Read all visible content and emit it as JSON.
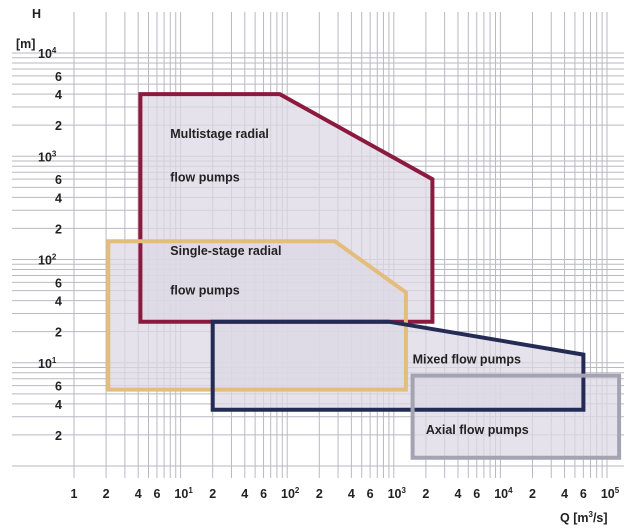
{
  "chart_data": {
    "type": "area",
    "title": "",
    "xlabel": {
      "text": "Q",
      "unit_base": "m",
      "unit_sup": "3",
      "unit_tail": "/s"
    },
    "ylabel": {
      "text": "H",
      "unit": "m"
    },
    "x_scale": "log",
    "y_scale": "log",
    "xlim": [
      1,
      100000
    ],
    "ylim": [
      1,
      10000
    ],
    "grid": true,
    "x_tick_labels": [
      {
        "value": 1,
        "base": "1",
        "sup": ""
      },
      {
        "value": 2,
        "base": "2",
        "sup": ""
      },
      {
        "value": 4,
        "base": "4",
        "sup": ""
      },
      {
        "value": 6,
        "base": "6",
        "sup": ""
      },
      {
        "value": 10,
        "base": "10",
        "sup": "1"
      },
      {
        "value": 20,
        "base": "2",
        "sup": ""
      },
      {
        "value": 40,
        "base": "4",
        "sup": ""
      },
      {
        "value": 60,
        "base": "6",
        "sup": ""
      },
      {
        "value": 100,
        "base": "10",
        "sup": "2"
      },
      {
        "value": 200,
        "base": "2",
        "sup": ""
      },
      {
        "value": 400,
        "base": "4",
        "sup": ""
      },
      {
        "value": 600,
        "base": "6",
        "sup": ""
      },
      {
        "value": 1000,
        "base": "10",
        "sup": "3"
      },
      {
        "value": 2000,
        "base": "2",
        "sup": ""
      },
      {
        "value": 4000,
        "base": "4",
        "sup": ""
      },
      {
        "value": 6000,
        "base": "6",
        "sup": ""
      },
      {
        "value": 10000,
        "base": "10",
        "sup": "4"
      },
      {
        "value": 20000,
        "base": "2",
        "sup": ""
      },
      {
        "value": 40000,
        "base": "4",
        "sup": ""
      },
      {
        "value": 60000,
        "base": "6",
        "sup": ""
      },
      {
        "value": 100000,
        "base": "10",
        "sup": "5"
      }
    ],
    "y_tick_labels": [
      {
        "value": 2,
        "base": "2",
        "sup": ""
      },
      {
        "value": 4,
        "base": "4",
        "sup": ""
      },
      {
        "value": 6,
        "base": "6",
        "sup": ""
      },
      {
        "value": 10,
        "base": "10",
        "sup": "1"
      },
      {
        "value": 20,
        "base": "2",
        "sup": ""
      },
      {
        "value": 40,
        "base": "4",
        "sup": ""
      },
      {
        "value": 60,
        "base": "6",
        "sup": ""
      },
      {
        "value": 100,
        "base": "10",
        "sup": "2"
      },
      {
        "value": 200,
        "base": "2",
        "sup": ""
      },
      {
        "value": 400,
        "base": "4",
        "sup": ""
      },
      {
        "value": 600,
        "base": "6",
        "sup": ""
      },
      {
        "value": 1000,
        "base": "10",
        "sup": "3"
      },
      {
        "value": 2000,
        "base": "2",
        "sup": ""
      },
      {
        "value": 4000,
        "base": "4",
        "sup": ""
      },
      {
        "value": 6000,
        "base": "6",
        "sup": ""
      },
      {
        "value": 10000,
        "base": "10",
        "sup": "4"
      }
    ],
    "series": [
      {
        "name": "Multistage radial flow pumps",
        "label_lines": [
          "Multistage radial",
          "flow pumps"
        ],
        "label_anchor": [
          8,
          1500
        ],
        "label_line_step": 0.42,
        "color": "#8c1a3e",
        "fill": "#dcd8e4",
        "polygon": [
          [
            4.2,
            4000
          ],
          [
            85,
            4000
          ],
          [
            2300,
            600
          ],
          [
            2300,
            25
          ],
          [
            4.2,
            25
          ]
        ]
      },
      {
        "name": "Single-stage radial flow pumps",
        "label_lines": [
          "Single-stage radial",
          "flow pumps"
        ],
        "label_anchor": [
          8,
          110
        ],
        "label_line_step": 0.38,
        "color": "#e4bc7c",
        "fill": "#dcd8e4",
        "polygon": [
          [
            2.1,
            150
          ],
          [
            280,
            150
          ],
          [
            1300,
            48
          ],
          [
            1300,
            5.5
          ],
          [
            2.1,
            5.5
          ]
        ]
      },
      {
        "name": "Mixed flow pumps",
        "label_lines": [
          "Mixed flow pumps"
        ],
        "label_anchor": [
          1500,
          9.8
        ],
        "label_line_step": 0,
        "color": "#242b54",
        "fill": "#dcd8e4",
        "polygon": [
          [
            20,
            25
          ],
          [
            900,
            25
          ],
          [
            60000,
            12
          ],
          [
            60000,
            3.5
          ],
          [
            20,
            3.5
          ]
        ]
      },
      {
        "name": "Axial flow pumps",
        "label_lines": [
          "Axial flow pumps"
        ],
        "label_anchor": [
          2000,
          2.05
        ],
        "label_line_step": 0,
        "color": "#a4a3b2",
        "fill": "#dcd8e4",
        "polygon": [
          [
            1500,
            7.5
          ],
          [
            130000,
            7.5
          ],
          [
            130000,
            1.2
          ],
          [
            1500,
            1.2
          ]
        ]
      }
    ]
  }
}
